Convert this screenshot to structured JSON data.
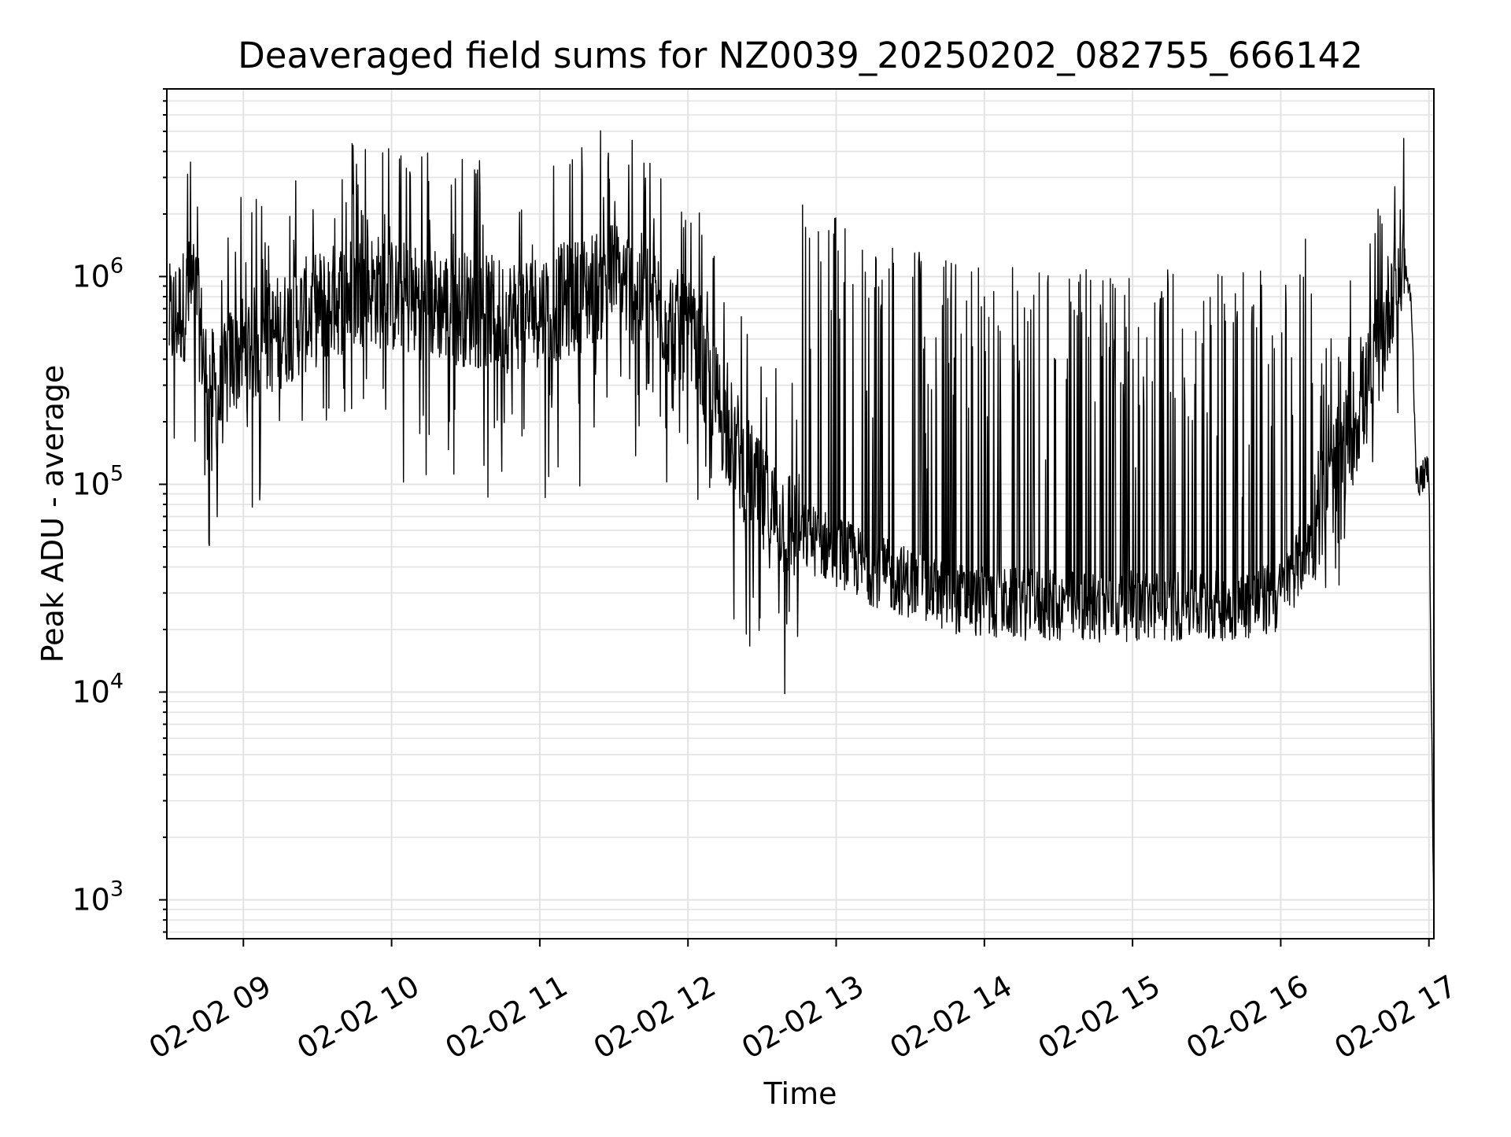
{
  "chart_data": {
    "type": "line",
    "title": "Deaveraged field sums for NZ0039_20250202_082755_666142",
    "xlabel": "Time",
    "ylabel": "Peak ADU - average",
    "yscale": "log",
    "ylim": [
      650,
      8000000
    ],
    "xlim": [
      "2025-02-02 08:29",
      "2025-02-02 17:02"
    ],
    "x_tick_labels": [
      {
        "t": "2025-02-02 09:00",
        "label": "02-02 09"
      },
      {
        "t": "2025-02-02 10:00",
        "label": "02-02 10"
      },
      {
        "t": "2025-02-02 11:00",
        "label": "02-02 11"
      },
      {
        "t": "2025-02-02 12:00",
        "label": "02-02 12"
      },
      {
        "t": "2025-02-02 13:00",
        "label": "02-02 13"
      },
      {
        "t": "2025-02-02 14:00",
        "label": "02-02 14"
      },
      {
        "t": "2025-02-02 15:00",
        "label": "02-02 15"
      },
      {
        "t": "2025-02-02 16:00",
        "label": "02-02 16"
      },
      {
        "t": "2025-02-02 17:00",
        "label": "02-02 17"
      }
    ],
    "y_tick_labels": [
      {
        "value": 1000,
        "base": "10",
        "exp": "3"
      },
      {
        "value": 10000,
        "base": "10",
        "exp": "4"
      },
      {
        "value": 100000,
        "base": "10",
        "exp": "5"
      },
      {
        "value": 1000000,
        "base": "10",
        "exp": "6"
      }
    ],
    "grid": true,
    "line_color": "#000000",
    "grid_color": "#e3e3e3",
    "series": [
      {
        "x": [
          "2025-02-02 08:30",
          "2025-02-02 08:35",
          "2025-02-02 08:40",
          "2025-02-02 08:45",
          "2025-02-02 08:50",
          "2025-02-02 08:55",
          "2025-02-02 09:00",
          "2025-02-02 09:10",
          "2025-02-02 09:20",
          "2025-02-02 09:30",
          "2025-02-02 09:40",
          "2025-02-02 09:50",
          "2025-02-02 10:00",
          "2025-02-02 10:15",
          "2025-02-02 10:30",
          "2025-02-02 10:45",
          "2025-02-02 11:00",
          "2025-02-02 11:15",
          "2025-02-02 11:30",
          "2025-02-02 11:45",
          "2025-02-02 12:00",
          "2025-02-02 12:15",
          "2025-02-02 12:30",
          "2025-02-02 12:45",
          "2025-02-02 13:00",
          "2025-02-02 13:15",
          "2025-02-02 13:30",
          "2025-02-02 13:45",
          "2025-02-02 14:00",
          "2025-02-02 14:30",
          "2025-02-02 15:00",
          "2025-02-02 15:30",
          "2025-02-02 15:50",
          "2025-02-02 16:00",
          "2025-02-02 16:10",
          "2025-02-02 16:20",
          "2025-02-02 16:30",
          "2025-02-02 16:40",
          "2025-02-02 16:45",
          "2025-02-02 16:50",
          "2025-02-02 16:53",
          "2025-02-02 16:55",
          "2025-02-02 17:00",
          "2025-02-02 17:02"
        ],
        "y": [
          600000,
          700000,
          900000,
          350000,
          250000,
          400000,
          450000,
          500000,
          600000,
          700000,
          800000,
          900000,
          800000,
          750000,
          700000,
          650000,
          700000,
          800000,
          1000000,
          800000,
          500000,
          200000,
          80000,
          60000,
          50000,
          40000,
          35000,
          30000,
          28000,
          27000,
          27000,
          27000,
          28000,
          30000,
          50000,
          100000,
          200000,
          400000,
          900000,
          1200000,
          700000,
          100000,
          120000,
          700
        ]
      }
    ]
  }
}
